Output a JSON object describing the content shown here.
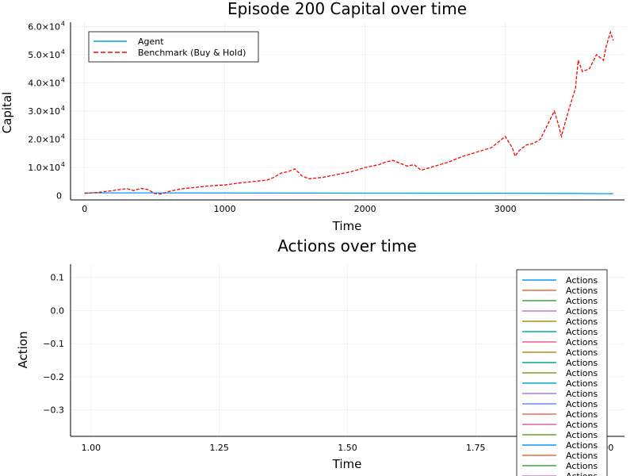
{
  "chart_data": [
    {
      "type": "line",
      "title": "Episode 200 Capital over time",
      "xlabel": "Time",
      "ylabel": "Capital",
      "xlim": [
        -100,
        3850
      ],
      "ylim": [
        -1500,
        61500
      ],
      "xticks": [
        0,
        1000,
        2000,
        3000
      ],
      "xtick_labels": [
        "0",
        "1000",
        "2000",
        "3000"
      ],
      "yticks": [
        0,
        10000,
        20000,
        30000,
        40000,
        50000,
        60000
      ],
      "ytick_labels": [
        {
          "mantissa": "0",
          "exp": ""
        },
        {
          "mantissa": "1.0×10",
          "exp": "4"
        },
        {
          "mantissa": "2.0×10",
          "exp": "4"
        },
        {
          "mantissa": "3.0×10",
          "exp": "4"
        },
        {
          "mantissa": "4.0×10",
          "exp": "4"
        },
        {
          "mantissa": "5.0×10",
          "exp": "4"
        },
        {
          "mantissa": "6.0×10",
          "exp": "4"
        }
      ],
      "grid": true,
      "legend": "top-left",
      "series": [
        {
          "name": "Agent",
          "color": "#009AFA",
          "style": "solid",
          "x": [
            0,
            500,
            1000,
            1500,
            2000,
            2500,
            3000,
            3500,
            3770
          ],
          "y": [
            1000,
            990,
            960,
            930,
            900,
            880,
            850,
            800,
            700
          ]
        },
        {
          "name": "Benchmark (Buy & Hold)",
          "color": "#FF0000",
          "style": "dashed",
          "x": [
            0,
            100,
            200,
            300,
            350,
            400,
            450,
            500,
            550,
            600,
            700,
            800,
            900,
            1000,
            1100,
            1200,
            1300,
            1350,
            1400,
            1450,
            1500,
            1550,
            1600,
            1700,
            1800,
            1900,
            2000,
            2100,
            2150,
            2200,
            2250,
            2300,
            2350,
            2400,
            2500,
            2600,
            2700,
            2800,
            2900,
            2950,
            3000,
            3050,
            3070,
            3100,
            3150,
            3200,
            3250,
            3300,
            3350,
            3380,
            3400,
            3450,
            3500,
            3520,
            3550,
            3600,
            3650,
            3700,
            3720,
            3750,
            3770
          ],
          "y": [
            800,
            1200,
            1800,
            2500,
            1800,
            2600,
            2200,
            800,
            600,
            1500,
            2500,
            3000,
            3500,
            3800,
            4500,
            5000,
            5500,
            6500,
            8000,
            8500,
            9500,
            7000,
            6000,
            6500,
            7500,
            8500,
            10000,
            11000,
            12000,
            12500,
            11500,
            10500,
            11000,
            9000,
            10500,
            12000,
            14000,
            15500,
            17000,
            19000,
            21000,
            17000,
            14000,
            16000,
            18000,
            18500,
            20000,
            25000,
            30000,
            25000,
            21000,
            30000,
            38000,
            48000,
            44000,
            45000,
            50000,
            48000,
            53000,
            58000,
            55000
          ]
        }
      ]
    },
    {
      "type": "line",
      "title": "Actions over time",
      "xlabel": "Time",
      "ylabel": "Action",
      "xlim": [
        0.96,
        2.04
      ],
      "ylim": [
        -0.38,
        0.14
      ],
      "xticks": [
        1.0,
        1.25,
        1.5,
        1.75,
        2.0
      ],
      "xtick_labels": [
        "1.00",
        "1.25",
        "1.50",
        "1.75",
        "2.00"
      ],
      "yticks": [
        0.1,
        0.0,
        -0.1,
        -0.2,
        -0.3
      ],
      "ytick_labels": [
        "0.1",
        "0.0",
        "−0.1",
        "−0.2",
        "−0.3"
      ],
      "grid": true,
      "legend": "right",
      "legend_label": "Actions",
      "legend_colors": [
        "#009AFA",
        "#E36F47",
        "#3EA44E",
        "#C371D2",
        "#AC8E18",
        "#00AAAE",
        "#ED5E93",
        "#C68225",
        "#00A98D",
        "#8E971E",
        "#00A9CD",
        "#9B7FE8",
        "#618DF6",
        "#F16C64",
        "#DC63AD",
        "#6B9F23",
        "#009AFA",
        "#E36F47",
        "#3EA44E",
        "#C371D2"
      ]
    }
  ]
}
